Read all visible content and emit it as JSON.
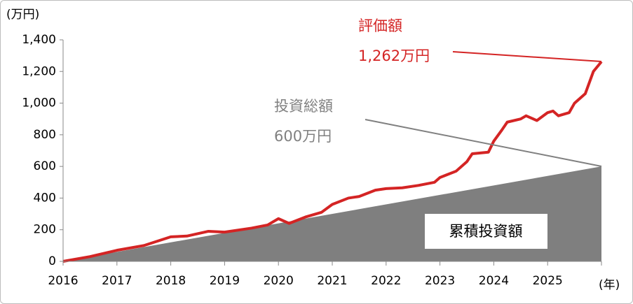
{
  "chart_data": {
    "type": "line",
    "y_unit": "(万円)",
    "x_unit": "(年)",
    "xlim": [
      2016,
      2026
    ],
    "xticks": [
      2016,
      2017,
      2018,
      2019,
      2020,
      2021,
      2022,
      2023,
      2024,
      2025
    ],
    "ylim": [
      0,
      1400
    ],
    "yticks": [
      0,
      200,
      400,
      600,
      800,
      {
        "value": 1000,
        "label": "1,000"
      },
      {
        "value": 1200,
        "label": "1,200"
      },
      {
        "value": 1400,
        "label": "1,400"
      }
    ],
    "series": [
      {
        "name": "累積投資額",
        "type": "area",
        "color": "#7f7f7f",
        "x": [
          2016,
          2026
        ],
        "values": [
          0,
          600
        ]
      },
      {
        "name": "評価額",
        "type": "line",
        "color": "#d42424",
        "x": [
          2016,
          2016.5,
          2017,
          2017.5,
          2018,
          2018.3,
          2018.7,
          2019,
          2019.5,
          2019.8,
          2020,
          2020.2,
          2020.5,
          2020.8,
          2021,
          2021.3,
          2021.5,
          2021.8,
          2022,
          2022.3,
          2022.6,
          2022.9,
          2023,
          2023.3,
          2023.5,
          2023.6,
          2023.9,
          2024,
          2024.15,
          2024.25,
          2024.5,
          2024.6,
          2024.8,
          2025,
          2025.1,
          2025.2,
          2025.4,
          2025.5,
          2025.7,
          2025.85,
          2026
        ],
        "values": [
          0,
          30,
          70,
          100,
          155,
          160,
          190,
          185,
          210,
          230,
          270,
          240,
          280,
          310,
          360,
          400,
          410,
          450,
          460,
          465,
          480,
          500,
          530,
          570,
          630,
          680,
          690,
          760,
          830,
          880,
          900,
          920,
          890,
          940,
          950,
          920,
          940,
          1000,
          1060,
          1200,
          1262
        ]
      }
    ],
    "annotations": [
      "1,262万円",
      "投資総額",
      "600万円"
    ]
  }
}
